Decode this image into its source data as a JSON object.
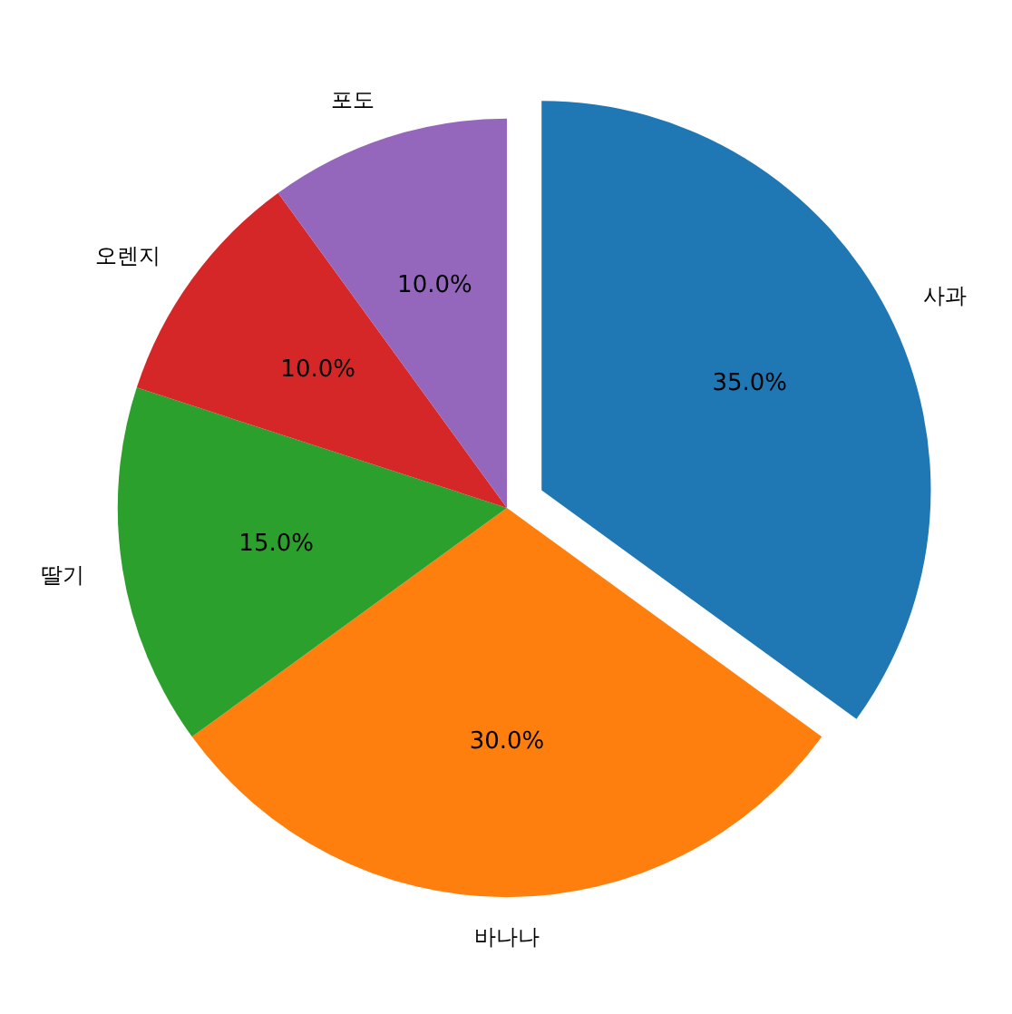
{
  "chart_data": {
    "type": "pie",
    "categories": [
      "사과",
      "바나나",
      "딸기",
      "오렌지",
      "포도"
    ],
    "values": [
      35,
      30,
      15,
      10,
      10
    ],
    "colors": [
      "#1f77b4",
      "#ff7f0e",
      "#2ca02c",
      "#d62728",
      "#9467bd"
    ],
    "value_labels": [
      "35.0%",
      "30.0%",
      "15.0%",
      "10.0%",
      "10.0%"
    ],
    "legend": false
  }
}
